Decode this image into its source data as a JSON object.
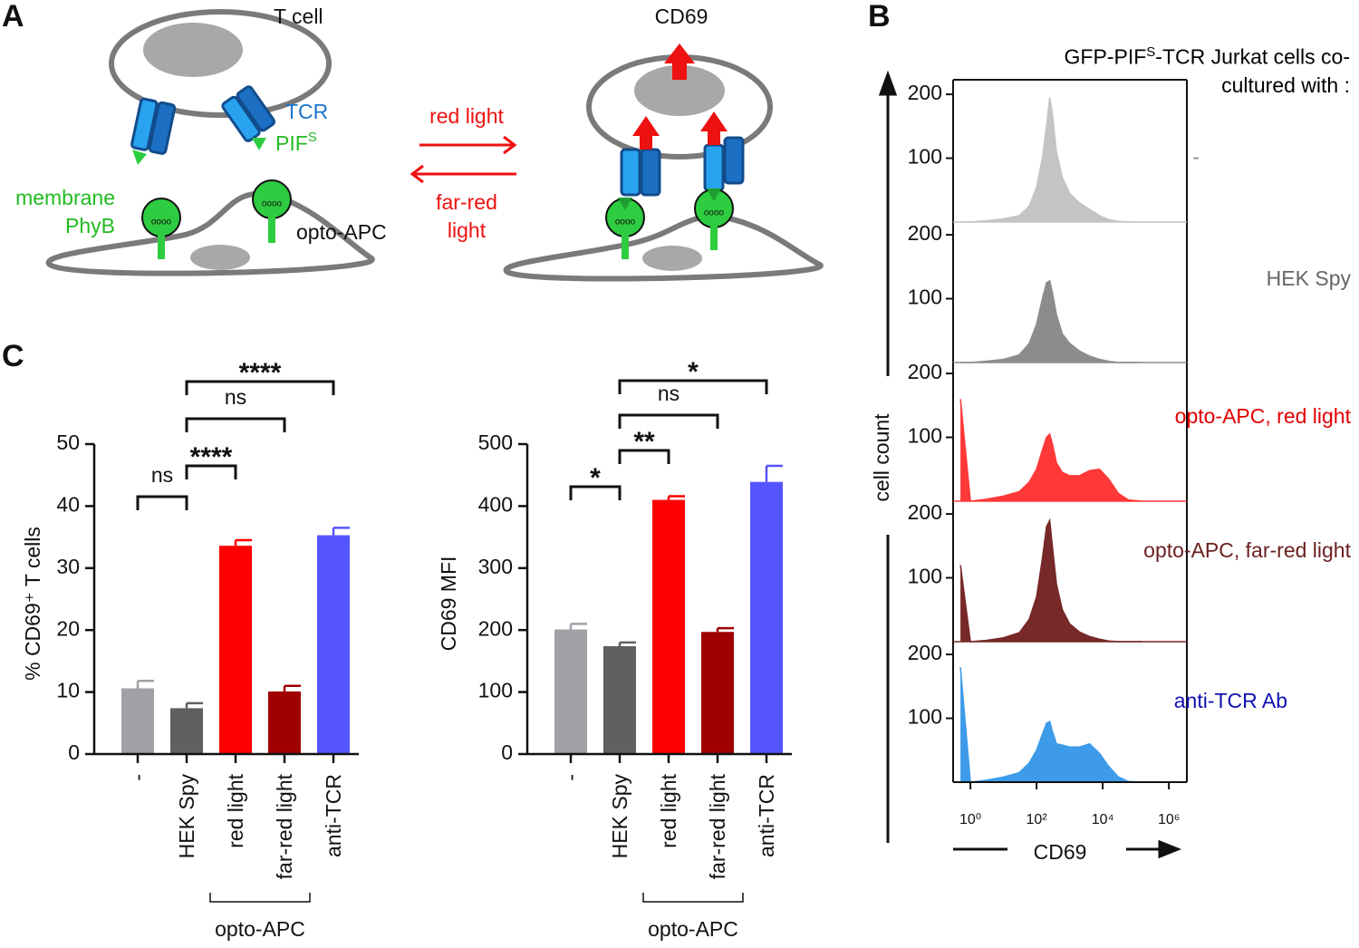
{
  "figure": {
    "panel_labels": [
      "A",
      "B",
      "C"
    ],
    "diagram": {
      "t_cell": "T cell",
      "tcr": "TCR",
      "pif": {
        "text": "PIF",
        "sup": "S"
      },
      "membrane_phyb": [
        "membrane",
        "PhyB"
      ],
      "opto_apc": "opto-APC",
      "red_light": "red light",
      "far_red_light": [
        "far-red",
        "light"
      ],
      "cd69": "CD69"
    }
  },
  "chart_data": [
    {
      "type": "bar",
      "ylabel": "% CD69⁺ T cells",
      "categories": [
        "-",
        "HEK Spy",
        "red light",
        "far-red light",
        "anti-TCR"
      ],
      "values": [
        10.6,
        7.4,
        33.6,
        10.1,
        35.3
      ],
      "errors": [
        1.2,
        0.8,
        0.9,
        0.9,
        1.2
      ],
      "colors": [
        "#a0a0a6",
        "#606060",
        "#ff0000",
        "#a00000",
        "#5555ff"
      ],
      "ylim": [
        0,
        50
      ],
      "yticks": [
        0,
        10,
        20,
        30,
        40,
        50
      ],
      "groups": [
        {
          "label": "opto-APC",
          "categories": [
            "red light",
            "far-red light"
          ]
        }
      ],
      "annotations": [
        {
          "label": "ns",
          "pair": [
            "-",
            "HEK Spy"
          ]
        },
        {
          "label": "****",
          "pair": [
            "HEK Spy",
            "red light"
          ]
        },
        {
          "label": "ns",
          "pair": [
            "HEK Spy",
            "far-red light"
          ]
        },
        {
          "label": "****",
          "pair": [
            "HEK Spy",
            "anti-TCR"
          ]
        }
      ]
    },
    {
      "type": "bar",
      "ylabel": "CD69 MFI",
      "categories": [
        "-",
        "HEK Spy",
        "red light",
        "far-red light",
        "anti-TCR"
      ],
      "values": [
        201,
        174,
        410,
        197,
        439
      ],
      "errors": [
        9,
        6,
        6,
        6,
        26
      ],
      "colors": [
        "#a0a0a6",
        "#606060",
        "#ff0000",
        "#a00000",
        "#5555ff"
      ],
      "ylim": [
        0,
        500
      ],
      "yticks": [
        0,
        100,
        200,
        300,
        400,
        500
      ],
      "groups": [
        {
          "label": "opto-APC",
          "categories": [
            "red light",
            "far-red light"
          ]
        }
      ],
      "annotations": [
        {
          "label": "*",
          "pair": [
            "-",
            "HEK Spy"
          ]
        },
        {
          "label": "**",
          "pair": [
            "HEK Spy",
            "red light"
          ]
        },
        {
          "label": "ns",
          "pair": [
            "HEK Spy",
            "far-red light"
          ]
        },
        {
          "label": "*",
          "pair": [
            "HEK Spy",
            "anti-TCR"
          ]
        }
      ]
    },
    {
      "type": "area",
      "title": {
        "before": "GFP-PIF",
        "sup": "S",
        "after": "-TCR Jurkat cells co-cultured with :"
      },
      "xlabel": "CD69",
      "ylabel": "cell count",
      "log_x": true,
      "xlim": [
        0.3,
        3500000
      ],
      "xticks": [
        {
          "value": 1,
          "label": "10⁰"
        },
        {
          "value": 100,
          "label": "10²"
        },
        {
          "value": 10000,
          "label": "10⁴"
        },
        {
          "value": 1000000,
          "label": "10⁶"
        }
      ],
      "ylim": [
        0,
        220
      ],
      "yticks": [
        100,
        200
      ],
      "x": [
        0.5,
        1,
        3,
        10,
        30,
        60,
        100,
        150,
        200,
        250,
        300,
        400,
        600,
        1000,
        2000,
        4000,
        8000,
        15000,
        30000,
        60000,
        150000
      ],
      "series": [
        {
          "name": "-",
          "color": "#c4c4c4",
          "label_color": "#888888",
          "values": [
            0,
            0,
            2,
            5,
            10,
            25,
            55,
            100,
            150,
            195,
            170,
            110,
            70,
            45,
            30,
            20,
            10,
            4,
            1,
            0,
            0
          ]
        },
        {
          "name": "HEK Spy",
          "color": "#8c8c8c",
          "label_color": "#666666",
          "values": [
            0,
            0,
            2,
            5,
            12,
            30,
            60,
            100,
            125,
            128,
            110,
            75,
            45,
            30,
            18,
            10,
            5,
            2,
            0,
            0,
            0
          ]
        },
        {
          "name": "opto-APC, red light",
          "color": "#ff3838",
          "label_color": "#e00000",
          "values": [
            160,
            0,
            3,
            8,
            15,
            30,
            50,
            80,
            100,
            105,
            90,
            60,
            45,
            40,
            40,
            48,
            50,
            35,
            12,
            2,
            0
          ]
        },
        {
          "name": "opto-APC, far-red light",
          "color": "#772828",
          "label_color": "#6b1f1f",
          "values": [
            120,
            0,
            2,
            6,
            14,
            35,
            70,
            130,
            180,
            190,
            150,
            90,
            50,
            28,
            15,
            8,
            4,
            1,
            0,
            0,
            0
          ]
        },
        {
          "name": "anti-TCR Ab",
          "color": "#3d9be9",
          "label_color": "#1010b0",
          "values": [
            180,
            0,
            3,
            8,
            15,
            30,
            50,
            75,
            92,
            95,
            80,
            60,
            58,
            55,
            55,
            60,
            45,
            25,
            8,
            1,
            0
          ]
        }
      ]
    }
  ]
}
